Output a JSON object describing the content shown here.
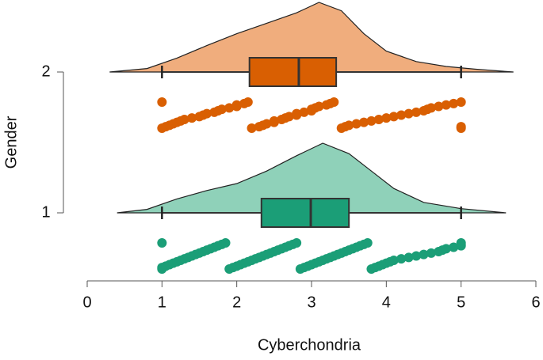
{
  "chart_data": {
    "type": "raincloud",
    "x_label": "Cyberchondria",
    "y_label": "Gender",
    "xlim": [
      0,
      6
    ],
    "xticks": [
      0,
      1,
      2,
      3,
      4,
      5,
      6
    ],
    "groups": [
      {
        "name": "1",
        "density_color": "#8fd1b9",
        "color": "#1b9e77",
        "box": {
          "min": 1,
          "q1": 2.33,
          "median": 2.99,
          "q3": 3.5,
          "max": 5
        },
        "density": {
          "x": [
            0.4,
            0.8,
            1.2,
            1.6,
            2.0,
            2.4,
            2.8,
            3.15,
            3.5,
            3.8,
            4.1,
            4.5,
            5.0,
            5.6
          ],
          "y": [
            0,
            0.025,
            0.1,
            0.16,
            0.21,
            0.3,
            0.41,
            0.5,
            0.425,
            0.3,
            0.175,
            0.075,
            0.03,
            0
          ]
        },
        "points": [
          1,
          1,
          1,
          1.05,
          1.1,
          1.15,
          1.2,
          1.25,
          1.3,
          1.35,
          1.4,
          1.45,
          1.5,
          1.55,
          1.6,
          1.65,
          1.7,
          1.75,
          1.8,
          1.85,
          1.9,
          1.95,
          2,
          2.05,
          2.1,
          2.15,
          2.2,
          2.25,
          2.3,
          2.35,
          2.4,
          2.45,
          2.5,
          2.55,
          2.6,
          2.65,
          2.7,
          2.75,
          2.8,
          2.85,
          2.9,
          2.95,
          3,
          3.05,
          3.1,
          3.15,
          3.2,
          3.25,
          3.3,
          3.35,
          3.4,
          3.45,
          3.5,
          3.55,
          3.6,
          3.65,
          3.7,
          3.75,
          3.8,
          3.85,
          3.9,
          3.95,
          4,
          4.05,
          4.1,
          4.2,
          4.3,
          4.4,
          4.5,
          4.6,
          4.7,
          4.75,
          4.8,
          4.9,
          5,
          5,
          5
        ]
      },
      {
        "name": "2",
        "density_color": "#f0ad7d",
        "color": "#d95f02",
        "box": {
          "min": 1,
          "q1": 2.17,
          "median": 2.83,
          "q3": 3.33,
          "max": 5
        },
        "density": {
          "x": [
            0.3,
            0.8,
            1.2,
            1.6,
            2.0,
            2.4,
            2.8,
            3.1,
            3.4,
            3.7,
            4.0,
            4.4,
            4.8,
            5.2,
            5.7
          ],
          "y": [
            0,
            0.025,
            0.1,
            0.19,
            0.275,
            0.35,
            0.425,
            0.5,
            0.44,
            0.275,
            0.15,
            0.075,
            0.04,
            0.02,
            0
          ]
        },
        "points": [
          1,
          1,
          1.05,
          1.1,
          1.15,
          1.2,
          1.25,
          1.3,
          1.4,
          1.5,
          1.55,
          1.6,
          1.7,
          1.75,
          1.8,
          1.9,
          2,
          2,
          2.1,
          2.15,
          2.2,
          2.3,
          2.35,
          2.4,
          2.5,
          2.5,
          2.6,
          2.65,
          2.7,
          2.8,
          2.8,
          2.9,
          3,
          3,
          3.05,
          3.1,
          3.2,
          3.25,
          3.3,
          3.4,
          3.45,
          3.5,
          3.6,
          3.7,
          3.8,
          3.9,
          4,
          4.1,
          4.2,
          4.3,
          4.4,
          4.5,
          4.55,
          4.6,
          4.7,
          4.8,
          4.9,
          5,
          5,
          5
        ]
      }
    ]
  }
}
